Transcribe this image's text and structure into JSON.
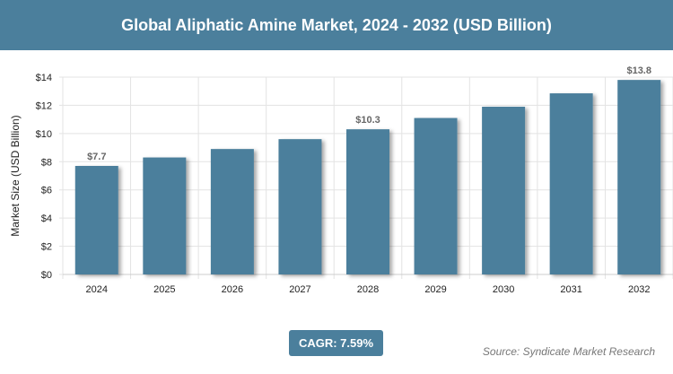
{
  "title": "Global Aliphatic Amine Market, 2024 - 2032 (USD Billion)",
  "cagr_label": "CAGR: 7.59%",
  "source": "Source: Syndicate Market Research",
  "colors": {
    "bar": "#4b7f9c",
    "header": "#4b7f9c"
  },
  "chart_data": {
    "type": "bar",
    "title": "Global Aliphatic Amine Market, 2024 - 2032 (USD Billion)",
    "xlabel": "",
    "ylabel": "Market Size (USD Billion)",
    "categories": [
      "2024",
      "2025",
      "2026",
      "2027",
      "2028",
      "2029",
      "2030",
      "2031",
      "2032"
    ],
    "values": [
      7.7,
      8.3,
      8.9,
      9.6,
      10.3,
      11.1,
      11.9,
      12.85,
      13.8
    ],
    "data_labels": {
      "0": "$7.7",
      "4": "$10.3",
      "8": "$13.8"
    },
    "ylim": [
      0,
      14
    ],
    "yticks": [
      0,
      2,
      4,
      6,
      8,
      10,
      12,
      14
    ],
    "ytick_labels": [
      "$0",
      "$2",
      "$4",
      "$6",
      "$8",
      "$10",
      "$12",
      "$14"
    ],
    "grid": true
  }
}
